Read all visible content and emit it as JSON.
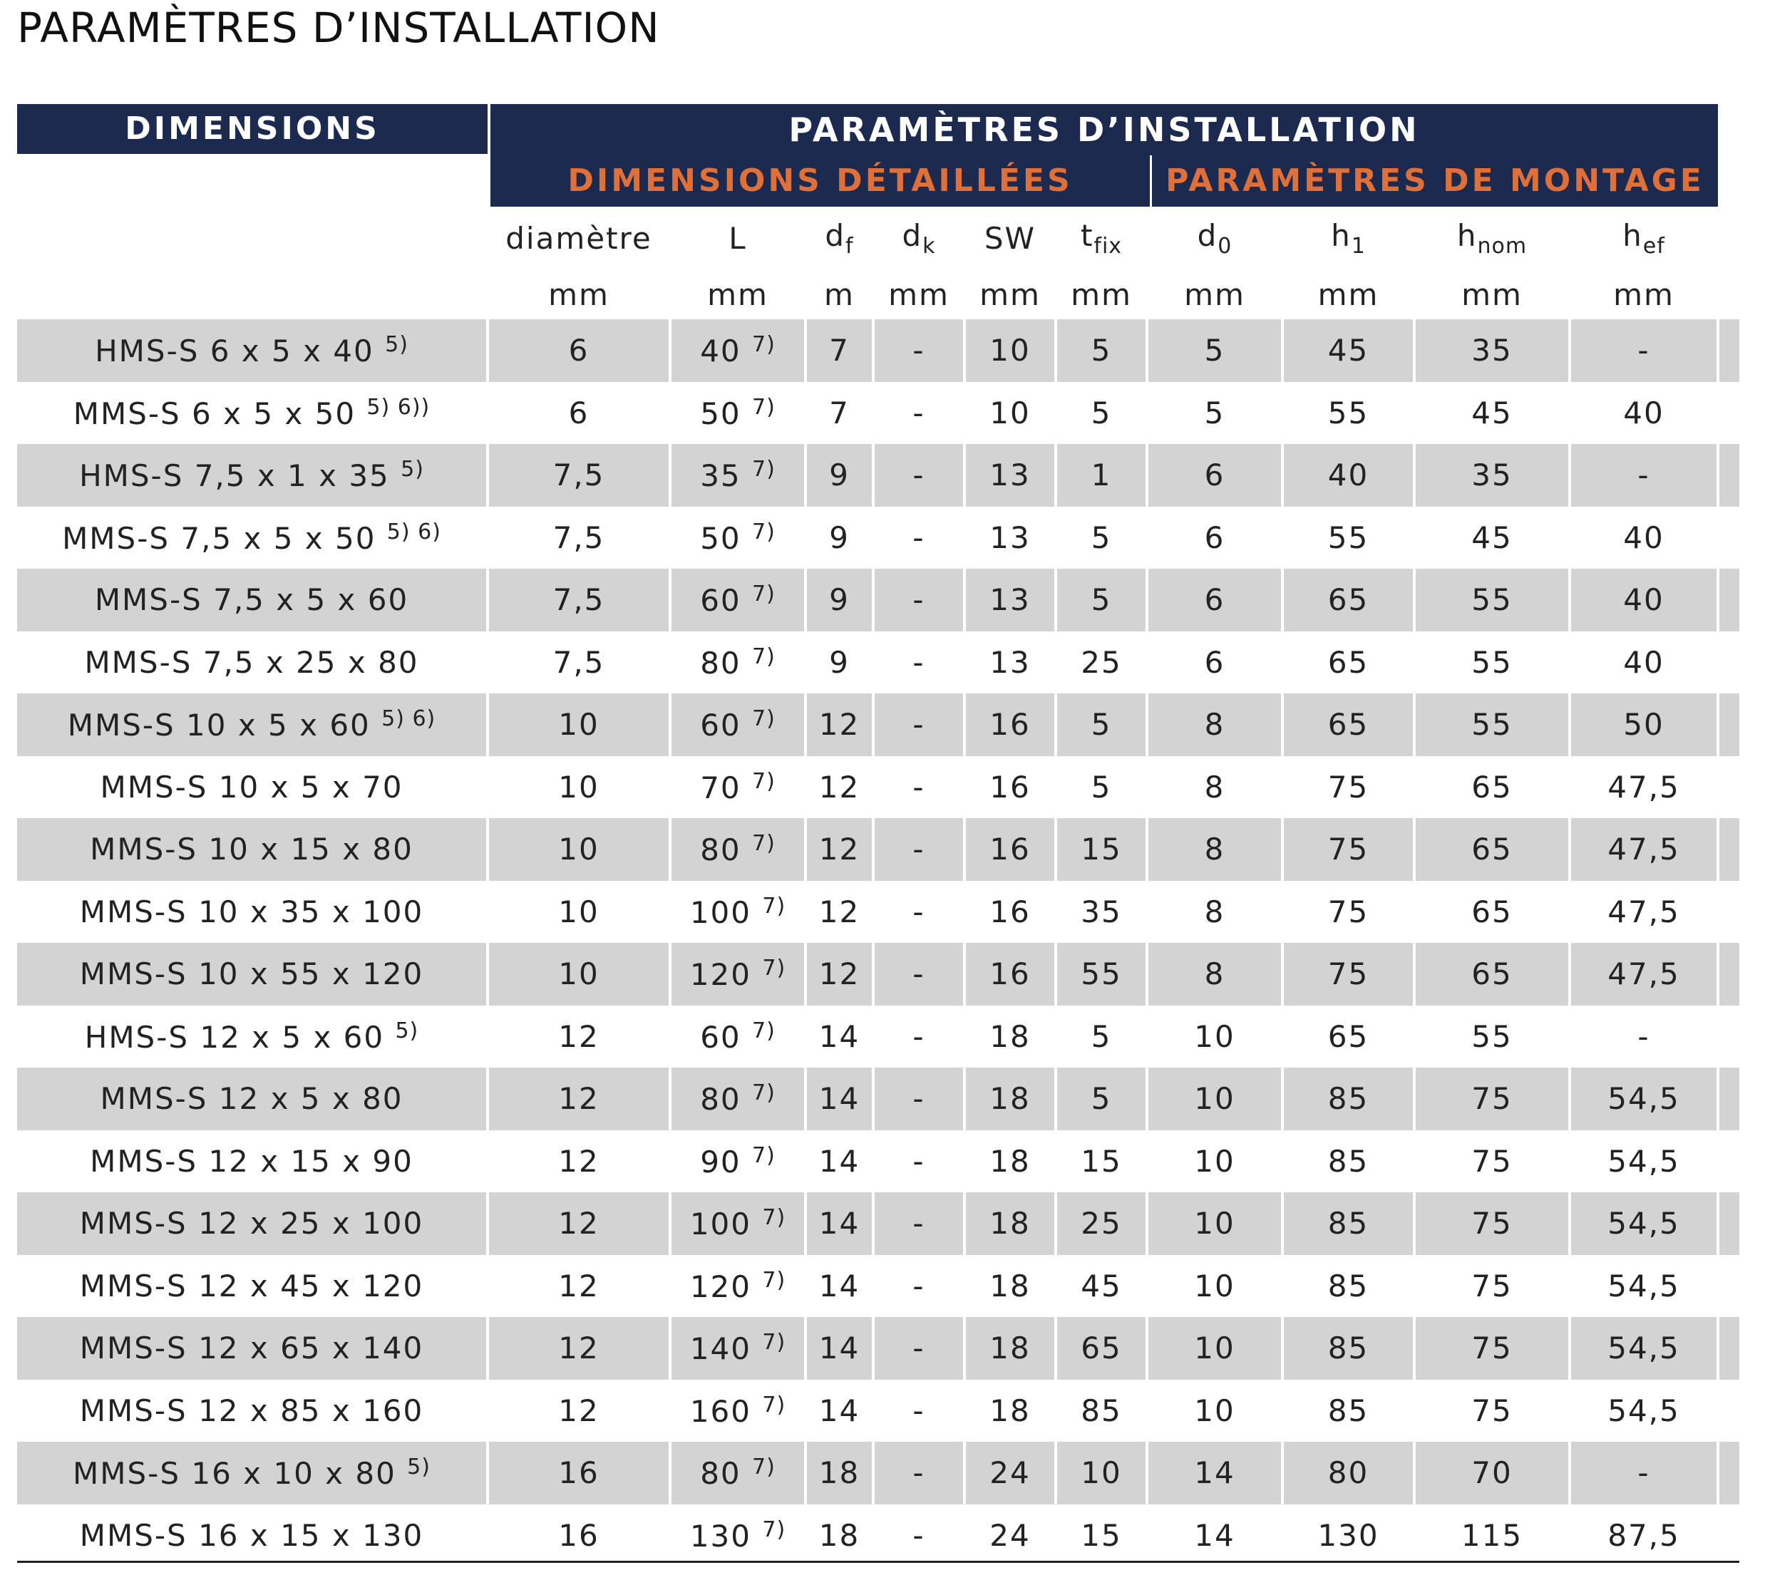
{
  "page_title": "PARAMÈTRES D’INSTALLATION",
  "header": {
    "dimensions": "DIMENSIONS",
    "params": "PARAMÈTRES D’INSTALLATION",
    "detailed": "DIMENSIONS DÉTAILLÉES",
    "mounting": "PARAMÈTRES DE MONTAGE"
  },
  "columns": [
    {
      "main": "diamètre",
      "sub": "",
      "unit": "mm"
    },
    {
      "main": "L",
      "sub": "",
      "unit": "mm"
    },
    {
      "main": "d",
      "sub": "f",
      "unit": "m"
    },
    {
      "main": "d",
      "sub": "k",
      "unit": "mm"
    },
    {
      "main": "SW",
      "sub": "",
      "unit": "mm"
    },
    {
      "main": "t",
      "sub": "fix",
      "unit": "mm"
    },
    {
      "main": "d",
      "sub": "0",
      "unit": "mm"
    },
    {
      "main": "h",
      "sub": "1",
      "unit": "mm"
    },
    {
      "main": "h",
      "sub": "nom",
      "unit": "mm"
    },
    {
      "main": "h",
      "sub": "ef",
      "unit": "mm"
    }
  ],
  "rows": [
    {
      "name": "HMS-S 6 x 5 x 40",
      "note": "5)",
      "d": "6",
      "L": "40",
      "Lnote": "7)",
      "df": "7",
      "dk": "-",
      "sw": "10",
      "tfix": "5",
      "d0": "5",
      "h1": "45",
      "hnom": "35",
      "hef": "-"
    },
    {
      "name": "MMS-S 6 x 5 x 50",
      "note": "5) 6))",
      "d": "6",
      "L": "50",
      "Lnote": "7)",
      "df": "7",
      "dk": "-",
      "sw": "10",
      "tfix": "5",
      "d0": "5",
      "h1": "55",
      "hnom": "45",
      "hef": "40"
    },
    {
      "name": "HMS-S 7,5 x 1 x 35",
      "note": "5)",
      "d": "7,5",
      "L": "35",
      "Lnote": "7)",
      "df": "9",
      "dk": "-",
      "sw": "13",
      "tfix": "1",
      "d0": "6",
      "h1": "40",
      "hnom": "35",
      "hef": "-"
    },
    {
      "name": "MMS-S 7,5 x 5 x 50",
      "note": "5) 6)",
      "d": "7,5",
      "L": "50",
      "Lnote": "7)",
      "df": "9",
      "dk": "-",
      "sw": "13",
      "tfix": "5",
      "d0": "6",
      "h1": "55",
      "hnom": "45",
      "hef": "40"
    },
    {
      "name": "MMS-S 7,5 x 5 x 60",
      "note": "",
      "d": "7,5",
      "L": "60",
      "Lnote": "7)",
      "df": "9",
      "dk": "-",
      "sw": "13",
      "tfix": "5",
      "d0": "6",
      "h1": "65",
      "hnom": "55",
      "hef": "40"
    },
    {
      "name": "MMS-S 7,5 x 25 x 80",
      "note": "",
      "d": "7,5",
      "L": "80",
      "Lnote": "7)",
      "df": "9",
      "dk": "-",
      "sw": "13",
      "tfix": "25",
      "d0": "6",
      "h1": "65",
      "hnom": "55",
      "hef": "40"
    },
    {
      "name": "MMS-S 10 x 5 x 60",
      "note": "5) 6)",
      "d": "10",
      "L": "60",
      "Lnote": "7)",
      "df": "12",
      "dk": "-",
      "sw": "16",
      "tfix": "5",
      "d0": "8",
      "h1": "65",
      "hnom": "55",
      "hef": "50"
    },
    {
      "name": "MMS-S 10 x 5 x 70",
      "note": "",
      "d": "10",
      "L": "70",
      "Lnote": "7)",
      "df": "12",
      "dk": "-",
      "sw": "16",
      "tfix": "5",
      "d0": "8",
      "h1": "75",
      "hnom": "65",
      "hef": "47,5"
    },
    {
      "name": "MMS-S 10 x 15 x 80",
      "note": "",
      "d": "10",
      "L": "80",
      "Lnote": "7)",
      "df": "12",
      "dk": "-",
      "sw": "16",
      "tfix": "15",
      "d0": "8",
      "h1": "75",
      "hnom": "65",
      "hef": "47,5"
    },
    {
      "name": "MMS-S 10 x 35 x 100",
      "note": "",
      "d": "10",
      "L": "100",
      "Lnote": "7)",
      "df": "12",
      "dk": "-",
      "sw": "16",
      "tfix": "35",
      "d0": "8",
      "h1": "75",
      "hnom": "65",
      "hef": "47,5"
    },
    {
      "name": "MMS-S 10 x 55 x 120",
      "note": "",
      "d": "10",
      "L": "120",
      "Lnote": "7)",
      "df": "12",
      "dk": "-",
      "sw": "16",
      "tfix": "55",
      "d0": "8",
      "h1": "75",
      "hnom": "65",
      "hef": "47,5"
    },
    {
      "name": "HMS-S 12 x 5 x 60",
      "note": "5)",
      "d": "12",
      "L": "60",
      "Lnote": "7)",
      "df": "14",
      "dk": "-",
      "sw": "18",
      "tfix": "5",
      "d0": "10",
      "h1": "65",
      "hnom": "55",
      "hef": "-"
    },
    {
      "name": "MMS-S 12 x 5 x 80",
      "note": "",
      "d": "12",
      "L": "80",
      "Lnote": "7)",
      "df": "14",
      "dk": "-",
      "sw": "18",
      "tfix": "5",
      "d0": "10",
      "h1": "85",
      "hnom": "75",
      "hef": "54,5"
    },
    {
      "name": "MMS-S 12 x 15 x 90",
      "note": "",
      "d": "12",
      "L": "90",
      "Lnote": "7)",
      "df": "14",
      "dk": "-",
      "sw": "18",
      "tfix": "15",
      "d0": "10",
      "h1": "85",
      "hnom": "75",
      "hef": "54,5"
    },
    {
      "name": "MMS-S 12 x 25 x 100",
      "note": "",
      "d": "12",
      "L": "100",
      "Lnote": "7)",
      "df": "14",
      "dk": "-",
      "sw": "18",
      "tfix": "25",
      "d0": "10",
      "h1": "85",
      "hnom": "75",
      "hef": "54,5"
    },
    {
      "name": "MMS-S 12 x 45 x 120",
      "note": "",
      "d": "12",
      "L": "120",
      "Lnote": "7)",
      "df": "14",
      "dk": "-",
      "sw": "18",
      "tfix": "45",
      "d0": "10",
      "h1": "85",
      "hnom": "75",
      "hef": "54,5"
    },
    {
      "name": "MMS-S 12 x 65 x 140",
      "note": "",
      "d": "12",
      "L": "140",
      "Lnote": "7)",
      "df": "14",
      "dk": "-",
      "sw": "18",
      "tfix": "65",
      "d0": "10",
      "h1": "85",
      "hnom": "75",
      "hef": "54,5"
    },
    {
      "name": "MMS-S 12 x 85 x 160",
      "note": "",
      "d": "12",
      "L": "160",
      "Lnote": "7)",
      "df": "14",
      "dk": "-",
      "sw": "18",
      "tfix": "85",
      "d0": "10",
      "h1": "85",
      "hnom": "75",
      "hef": "54,5"
    },
    {
      "name": "MMS-S 16 x 10 x 80",
      "note": "5)",
      "d": "16",
      "L": "80",
      "Lnote": "7)",
      "df": "18",
      "dk": "-",
      "sw": "24",
      "tfix": "10",
      "d0": "14",
      "h1": "80",
      "hnom": "70",
      "hef": "-"
    },
    {
      "name": "MMS-S 16 x 15 x 130",
      "note": "",
      "d": "16",
      "L": "130",
      "Lnote": "7)",
      "df": "18",
      "dk": "-",
      "sw": "24",
      "tfix": "15",
      "d0": "14",
      "h1": "130",
      "hnom": "115",
      "hef": "87,5"
    }
  ],
  "colors": {
    "header_bg": "#1c2a4f",
    "header_text": "#ffffff",
    "subheader_text": "#e0703a",
    "row_shade": "#d3d3d3"
  }
}
